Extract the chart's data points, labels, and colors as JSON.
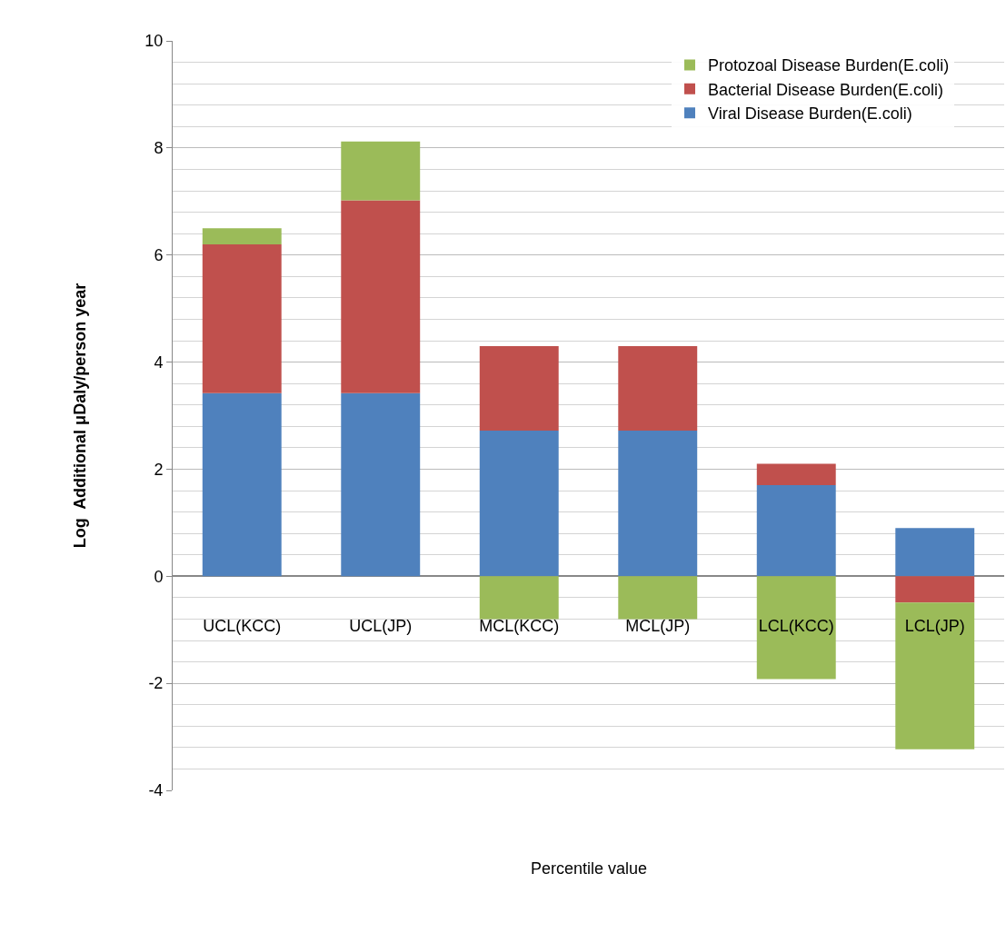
{
  "chart_data": {
    "type": "bar",
    "stacked": true,
    "xlabel": "Percentile value",
    "ylabel": "Log  Additional μDaly/person year",
    "categories": [
      "UCL(KCC)",
      "UCL(JP)",
      "MCL(KCC)",
      "MCL(JP)",
      "LCL(KCC)",
      "LCL(JP)"
    ],
    "series": [
      {
        "name": "Viral Disease Burden(E.coli)",
        "color": "#4f81bd",
        "values": [
          3.42,
          3.42,
          2.72,
          2.72,
          1.7,
          0.9
        ]
      },
      {
        "name": "Bacterial Disease Burden(E.coli)",
        "color": "#c0504d",
        "values": [
          2.78,
          3.6,
          1.58,
          1.58,
          0.4,
          -0.49
        ]
      },
      {
        "name": "Protozoal Disease Burden(E.coli)",
        "color": "#9bbb59",
        "values": [
          0.3,
          1.1,
          -0.8,
          -0.8,
          -1.92,
          -2.74
        ]
      }
    ],
    "ylim": [
      -4,
      10
    ],
    "yticks": [
      -4,
      -2,
      0,
      2,
      4,
      6,
      8,
      10
    ],
    "grid": true,
    "legend": "top right"
  }
}
